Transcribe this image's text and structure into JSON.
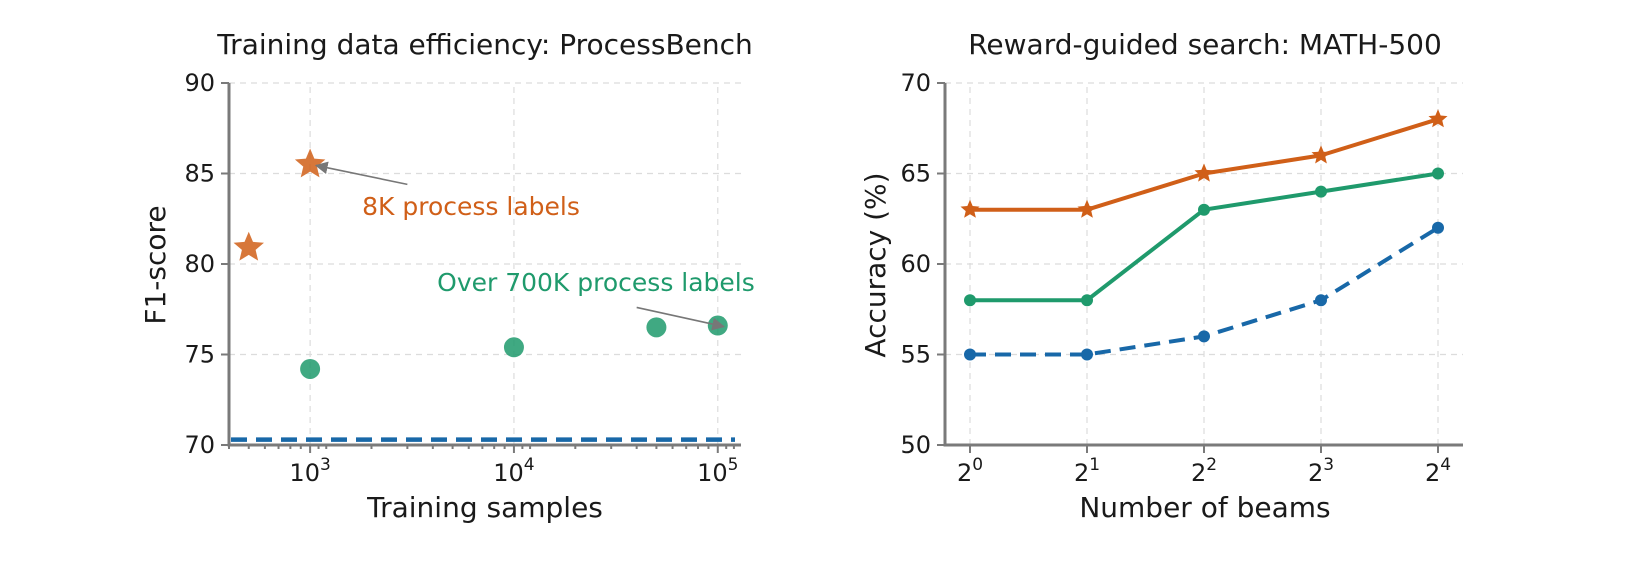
{
  "colors": {
    "orange": "#d05f18",
    "green": "#1f9a6c",
    "blue": "#1868a8",
    "arrow": "#777777"
  },
  "chart_data": [
    {
      "type": "scatter",
      "title": "Training data efficiency: ProcessBench",
      "xlabel": "Training samples",
      "ylabel": "F1-score",
      "xscale": "log",
      "xlim": [
        400,
        130000
      ],
      "ylim": [
        70,
        90
      ],
      "x_ticks": [
        {
          "value": 1000,
          "base": "10",
          "exp": "3"
        },
        {
          "value": 10000,
          "base": "10",
          "exp": "4"
        },
        {
          "value": 100000,
          "base": "10",
          "exp": "5"
        }
      ],
      "y_ticks": [
        70,
        75,
        80,
        85,
        90
      ],
      "grid": true,
      "series": [
        {
          "marker": "star",
          "color": "orange",
          "points": [
            [
              500,
              80.9
            ],
            [
              1000,
              85.5
            ]
          ]
        },
        {
          "marker": "circle",
          "color": "green",
          "points": [
            [
              1000,
              74.2
            ],
            [
              10000,
              75.4
            ],
            [
              50000,
              76.5
            ],
            [
              100000,
              76.6
            ]
          ]
        },
        {
          "marker": "hline",
          "style": "dashed",
          "color": "blue",
          "y": 70.3
        }
      ],
      "annotations": [
        {
          "text": "8K process labels",
          "color": "orange",
          "target": [
            1000,
            85.5
          ],
          "text_at": [
            1800,
            82.7
          ],
          "arrow_from": [
            3000,
            84.4
          ]
        },
        {
          "text": "Over 700K process labels",
          "color": "green",
          "target": [
            100000,
            76.6
          ],
          "text_at": [
            4200,
            78.5
          ],
          "arrow_from": [
            40000,
            77.6
          ]
        }
      ]
    },
    {
      "type": "line",
      "title": "Reward-guided search: MATH-500",
      "xlabel": "Number of beams",
      "ylabel": "Accuracy (%)",
      "categories": [
        {
          "base": "2",
          "exp": "0"
        },
        {
          "base": "2",
          "exp": "1"
        },
        {
          "base": "2",
          "exp": "2"
        },
        {
          "base": "2",
          "exp": "3"
        },
        {
          "base": "2",
          "exp": "4"
        }
      ],
      "x": [
        1,
        2,
        4,
        8,
        16
      ],
      "ylim": [
        50,
        70
      ],
      "y_ticks": [
        50,
        55,
        60,
        65,
        70
      ],
      "grid": true,
      "series": [
        {
          "color": "orange",
          "marker": "star",
          "style": "solid",
          "values": [
            63,
            63,
            65,
            66,
            68
          ]
        },
        {
          "color": "green",
          "marker": "circle",
          "style": "solid",
          "values": [
            58,
            58,
            63,
            64,
            65
          ]
        },
        {
          "color": "blue",
          "marker": "circle",
          "style": "dashed",
          "values": [
            55,
            55,
            56,
            58,
            62
          ]
        }
      ]
    }
  ]
}
